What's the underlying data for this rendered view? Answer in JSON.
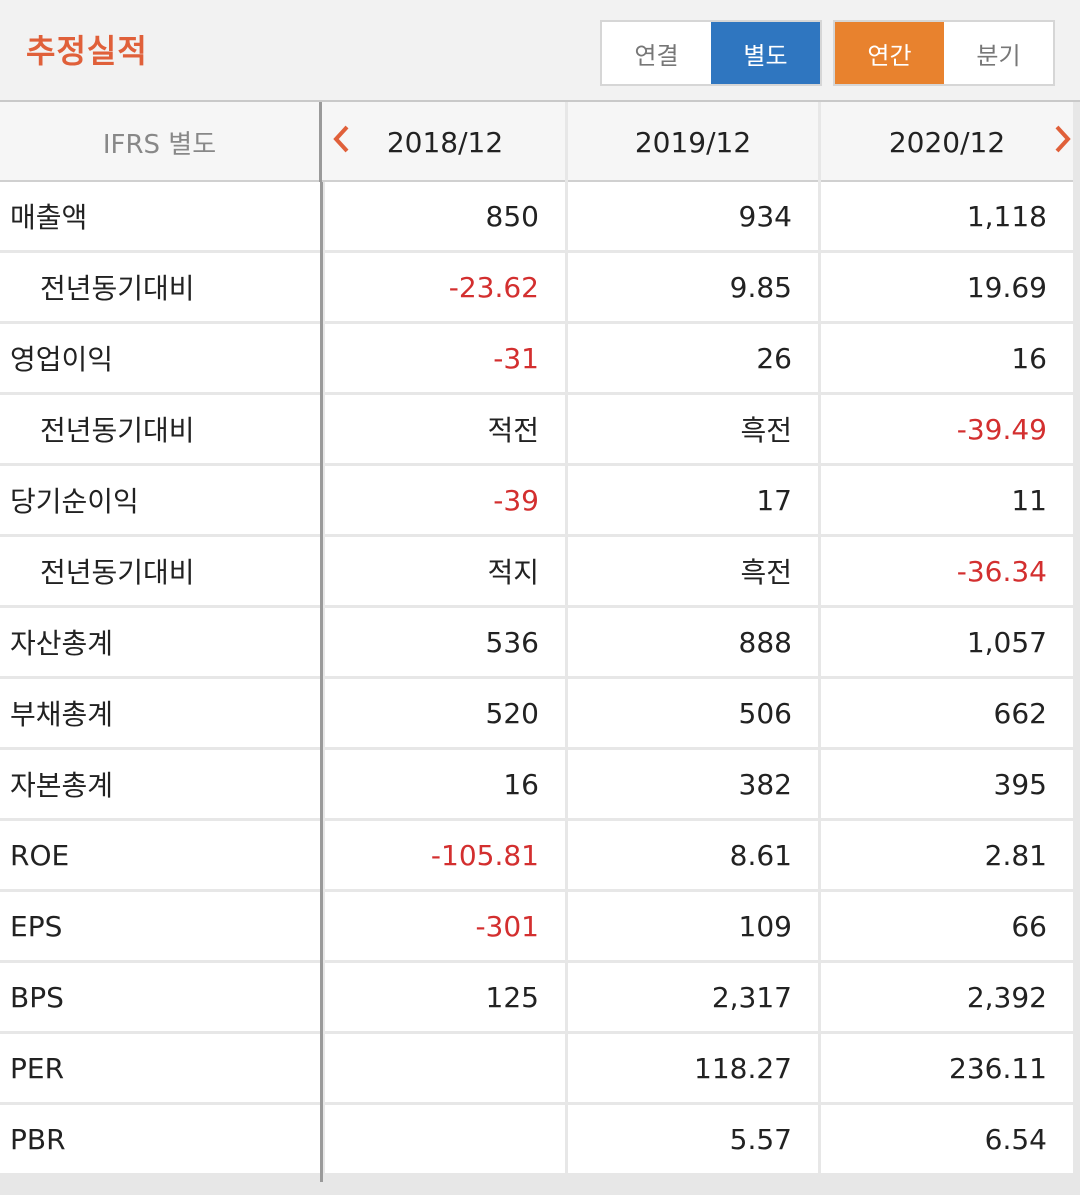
{
  "header": {
    "title": "추정실적",
    "scope_toggle": [
      "연결",
      "별도"
    ],
    "scope_selected": "별도",
    "period_toggle": [
      "연간",
      "분기"
    ],
    "period_selected": "연간"
  },
  "table": {
    "corner_label": "IFRS 별도",
    "prev_icon": "chevron-left-icon",
    "next_icon": "chevron-right-icon",
    "columns": [
      "2018/12",
      "2019/12",
      "2020/12"
    ],
    "negative_color": "#d32f2f",
    "rows": [
      {
        "label": "매출액",
        "sub": false,
        "values": [
          "850",
          "934",
          "1,118"
        ],
        "neg": [
          false,
          false,
          false
        ]
      },
      {
        "label": "전년동기대비",
        "sub": true,
        "values": [
          "-23.62",
          "9.85",
          "19.69"
        ],
        "neg": [
          true,
          false,
          false
        ]
      },
      {
        "label": "영업이익",
        "sub": false,
        "values": [
          "-31",
          "26",
          "16"
        ],
        "neg": [
          true,
          false,
          false
        ]
      },
      {
        "label": "전년동기대비",
        "sub": true,
        "values": [
          "적전",
          "흑전",
          "-39.49"
        ],
        "neg": [
          false,
          false,
          true
        ]
      },
      {
        "label": "당기순이익",
        "sub": false,
        "values": [
          "-39",
          "17",
          "11"
        ],
        "neg": [
          true,
          false,
          false
        ]
      },
      {
        "label": "전년동기대비",
        "sub": true,
        "values": [
          "적지",
          "흑전",
          "-36.34"
        ],
        "neg": [
          false,
          false,
          true
        ]
      },
      {
        "label": "자산총계",
        "sub": false,
        "values": [
          "536",
          "888",
          "1,057"
        ],
        "neg": [
          false,
          false,
          false
        ]
      },
      {
        "label": "부채총계",
        "sub": false,
        "values": [
          "520",
          "506",
          "662"
        ],
        "neg": [
          false,
          false,
          false
        ]
      },
      {
        "label": "자본총계",
        "sub": false,
        "values": [
          "16",
          "382",
          "395"
        ],
        "neg": [
          false,
          false,
          false
        ]
      },
      {
        "label": "ROE",
        "sub": false,
        "values": [
          "-105.81",
          "8.61",
          "2.81"
        ],
        "neg": [
          true,
          false,
          false
        ]
      },
      {
        "label": "EPS",
        "sub": false,
        "values": [
          "-301",
          "109",
          "66"
        ],
        "neg": [
          true,
          false,
          false
        ]
      },
      {
        "label": "BPS",
        "sub": false,
        "values": [
          "125",
          "2,317",
          "2,392"
        ],
        "neg": [
          false,
          false,
          false
        ]
      },
      {
        "label": "PER",
        "sub": false,
        "values": [
          "",
          "118.27",
          "236.11"
        ],
        "neg": [
          false,
          false,
          false
        ]
      },
      {
        "label": "PBR",
        "sub": false,
        "values": [
          "",
          "5.57",
          "6.54"
        ],
        "neg": [
          false,
          false,
          false
        ]
      }
    ]
  }
}
